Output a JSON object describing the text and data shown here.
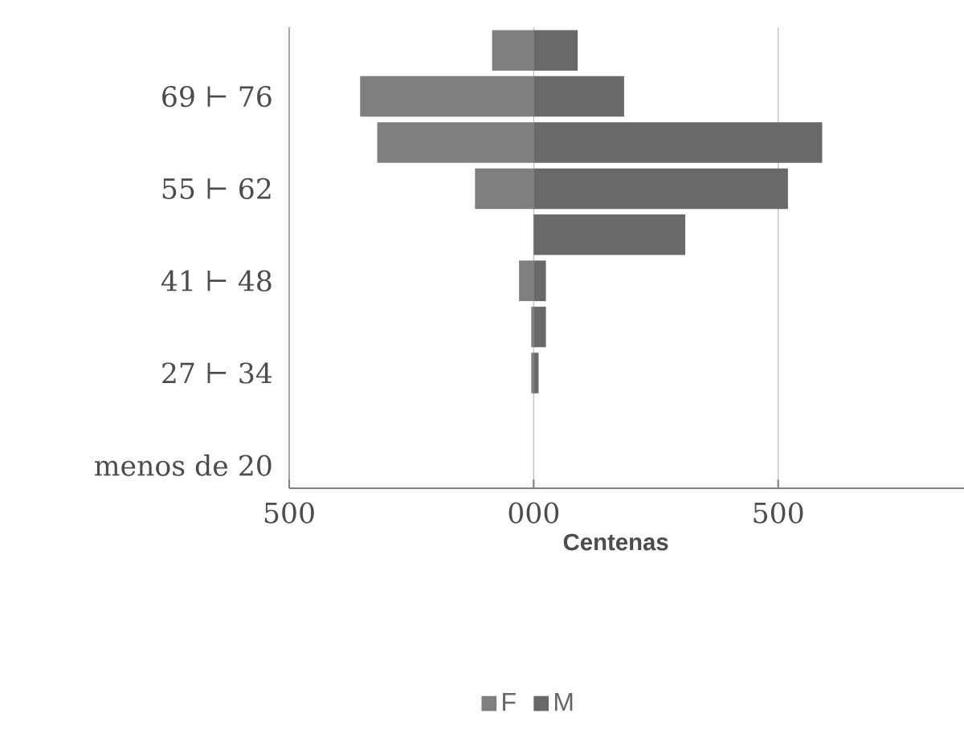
{
  "chart_data": {
    "type": "bar",
    "orientation": "horizontal",
    "stacked": true,
    "xlabel": "Centenas",
    "categories": [
      null,
      "69 ⊢ 76",
      null,
      "55 ⊢ 62",
      null,
      "41 ⊢ 48",
      null,
      "27 ⊢ 34",
      null,
      "menos de 20"
    ],
    "series": [
      {
        "name": "F",
        "color": "#7f7f7f",
        "values": [
          -85,
          -355,
          -320,
          -120,
          0,
          -30,
          -5,
          -5,
          0,
          0
        ]
      },
      {
        "name": "M",
        "color": "#696969",
        "values": [
          90,
          185,
          590,
          520,
          310,
          25,
          25,
          10,
          0,
          0
        ]
      }
    ],
    "xlim": [
      -500,
      880
    ],
    "xticks": [
      {
        "value": -500,
        "label": "500"
      },
      {
        "value": 0,
        "label": "000"
      },
      {
        "value": 500,
        "label": "500"
      }
    ],
    "grid": "x",
    "legend": "bottom"
  }
}
